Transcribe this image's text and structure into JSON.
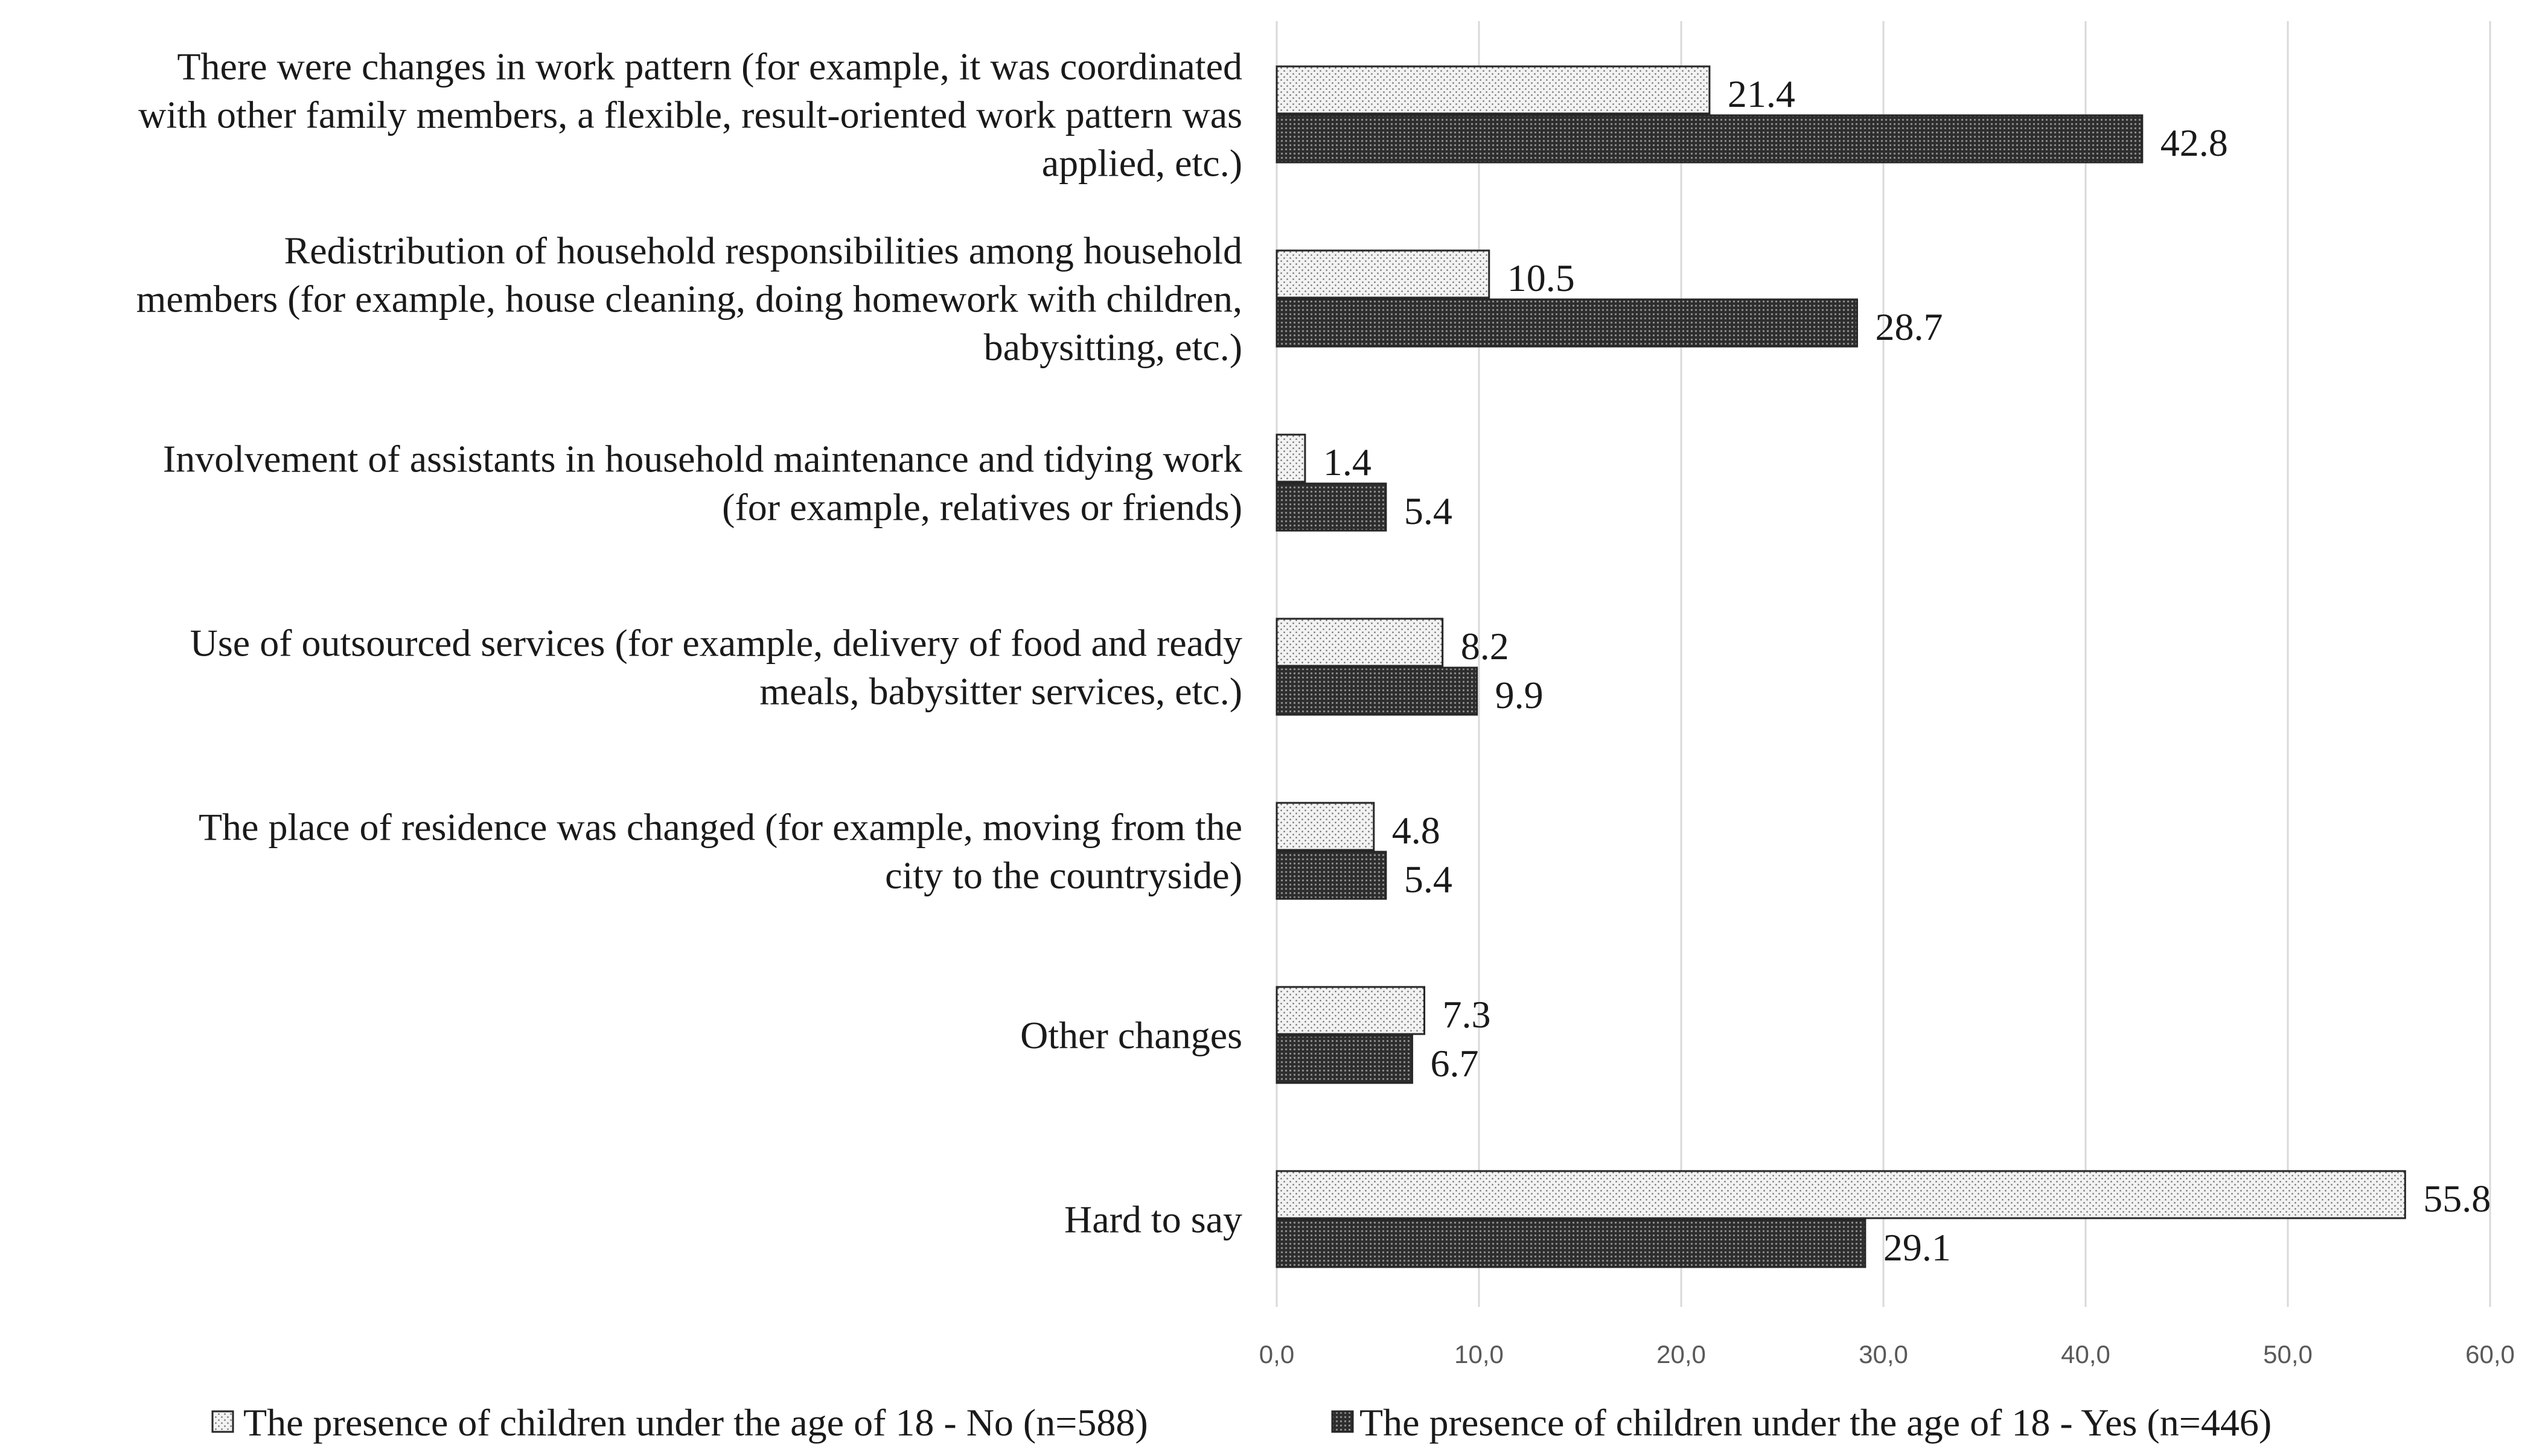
{
  "chart_data": {
    "type": "bar",
    "orientation": "horizontal",
    "title": "",
    "xlabel": "",
    "ylabel": "",
    "xlim": [
      0,
      60
    ],
    "xticks": [
      0,
      10,
      20,
      30,
      40,
      50,
      60
    ],
    "xtick_labels": [
      "0,0",
      "10,0",
      "20,0",
      "30,0",
      "40,0",
      "50,0",
      "60,0"
    ],
    "grid": "vertical",
    "legend_position": "bottom",
    "categories": [
      [
        "There were changes in work pattern (for example, it was coordinated",
        "with other family members, a flexible, result-oriented work pattern was",
        "applied, etc.)"
      ],
      [
        "Redistribution of household responsibilities among household",
        "members (for example, house cleaning, doing homework with children,",
        "babysitting, etc.)"
      ],
      [
        "Involvement of assistants in household maintenance and tidying work",
        "(for example, relatives or friends)"
      ],
      [
        "Use of outsourced services (for example, delivery of food and ready",
        "meals, babysitter services, etc.)"
      ],
      [
        "The place of residence was changed (for example, moving from the",
        "city to the countryside)"
      ],
      [
        "Other changes"
      ],
      [
        "Hard to say"
      ]
    ],
    "series": [
      {
        "name": "The presence of children under the age of 18 - No (n=588)",
        "pattern": "light-dots",
        "values": [
          21.4,
          10.5,
          1.4,
          8.2,
          4.8,
          7.3,
          55.8
        ],
        "labels": [
          "21.4",
          "10.5",
          "1.4",
          "8.2",
          "4.8",
          "7.3",
          "55.8"
        ]
      },
      {
        "name": "The presence of children under the age of 18 - Yes (n=446)",
        "pattern": "dark-grid",
        "values": [
          42.8,
          28.7,
          5.4,
          9.9,
          5.4,
          6.7,
          29.1
        ],
        "labels": [
          "42.8",
          "28.7",
          "5.4",
          "9.9",
          "5.4",
          "6.7",
          "29.1"
        ]
      }
    ],
    "colors": {
      "grid": "#d9d9d9",
      "bar_outline": "#262626",
      "text": "#1a1a1a",
      "tick_text": "#595959"
    }
  }
}
